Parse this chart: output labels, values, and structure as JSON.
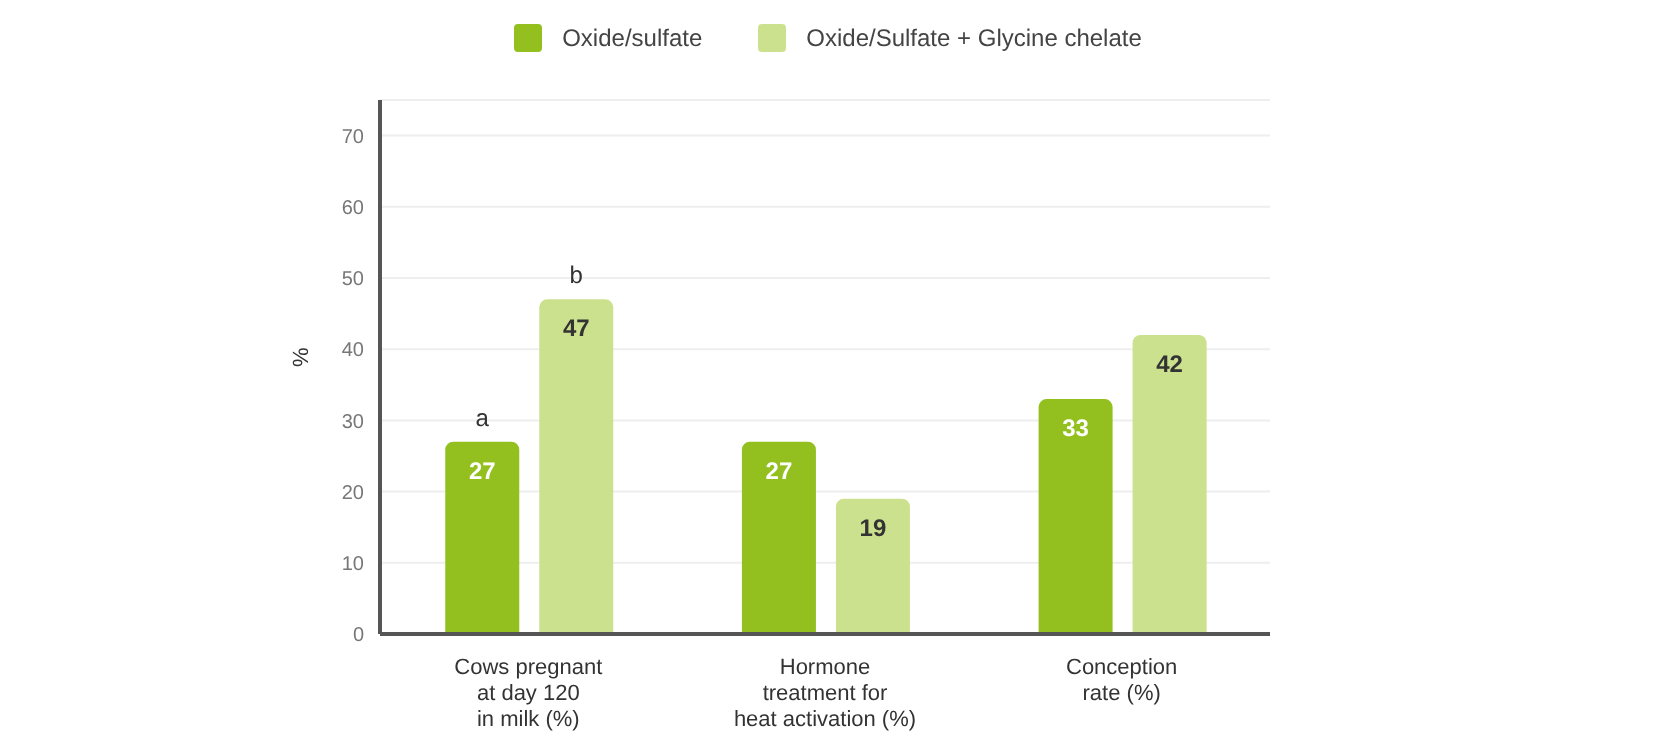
{
  "chart_data": {
    "type": "bar",
    "ylabel": "%",
    "categories": [
      "Cows pregnant\nat day 120\nin milk (%)",
      "Hormone\ntreatment for\nheat activation (%)",
      "Conception\nrate (%)"
    ],
    "series": [
      {
        "name": "Oxide/sulfate",
        "color": "#93c01f",
        "values": [
          27,
          27,
          33
        ]
      },
      {
        "name": "Oxide/Sulfate + Glycine chelate",
        "color": "#cce18e",
        "values": [
          47,
          19,
          42
        ]
      }
    ],
    "annotations": [
      "a",
      "b"
    ],
    "ylim": [
      0,
      75
    ],
    "yticks": [
      0,
      10,
      20,
      30,
      40,
      50,
      60,
      70
    ],
    "grid": "y",
    "legend": "top",
    "data_labels": true
  }
}
